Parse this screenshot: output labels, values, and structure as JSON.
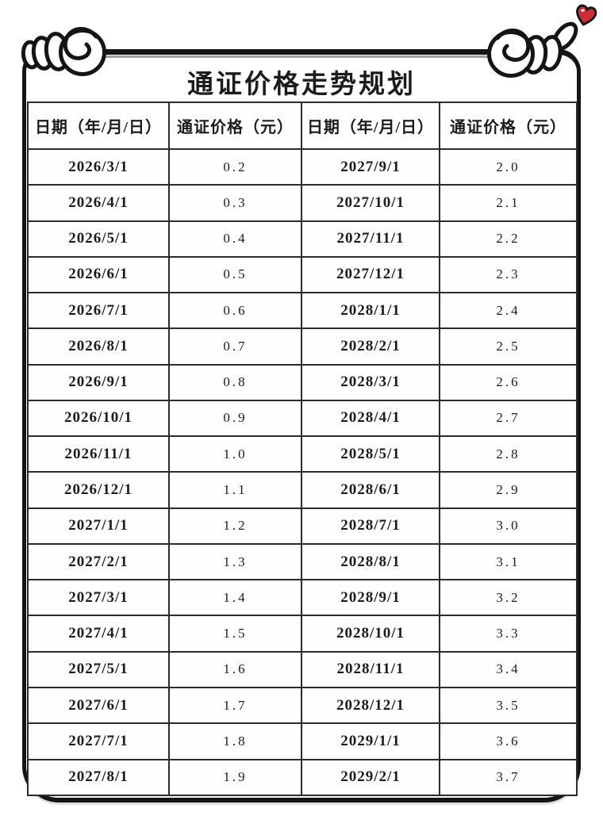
{
  "title": "通证价格走势规划",
  "table": {
    "headers": [
      "日期（年/月/日）",
      "通证价格（元）",
      "日期（年/月/日）",
      "通证价格（元）"
    ],
    "rows": [
      [
        "2026/3/1",
        "0.2",
        "2027/9/1",
        "2.0"
      ],
      [
        "2026/4/1",
        "0.3",
        "2027/10/1",
        "2.1"
      ],
      [
        "2026/5/1",
        "0.4",
        "2027/11/1",
        "2.2"
      ],
      [
        "2026/6/1",
        "0.5",
        "2027/12/1",
        "2.3"
      ],
      [
        "2026/7/1",
        "0.6",
        "2028/1/1",
        "2.4"
      ],
      [
        "2026/8/1",
        "0.7",
        "2028/2/1",
        "2.5"
      ],
      [
        "2026/9/1",
        "0.8",
        "2028/3/1",
        "2.6"
      ],
      [
        "2026/10/1",
        "0.9",
        "2028/4/1",
        "2.7"
      ],
      [
        "2026/11/1",
        "1.0",
        "2028/5/1",
        "2.8"
      ],
      [
        "2026/12/1",
        "1.1",
        "2028/6/1",
        "2.9"
      ],
      [
        "2027/1/1",
        "1.2",
        "2028/7/1",
        "3.0"
      ],
      [
        "2027/2/1",
        "1.3",
        "2028/8/1",
        "3.1"
      ],
      [
        "2027/3/1",
        "1.4",
        "2028/9/1",
        "3.2"
      ],
      [
        "2027/4/1",
        "1.5",
        "2028/10/1",
        "3.3"
      ],
      [
        "2027/5/1",
        "1.6",
        "2028/11/1",
        "3.4"
      ],
      [
        "2027/6/1",
        "1.7",
        "2028/12/1",
        "3.5"
      ],
      [
        "2027/7/1",
        "1.8",
        "2029/1/1",
        "3.6"
      ],
      [
        "2027/8/1",
        "1.9",
        "2029/2/1",
        "3.7"
      ]
    ]
  },
  "decorations": {
    "heart_color": "#cb2f36",
    "line_color": "#151515"
  }
}
